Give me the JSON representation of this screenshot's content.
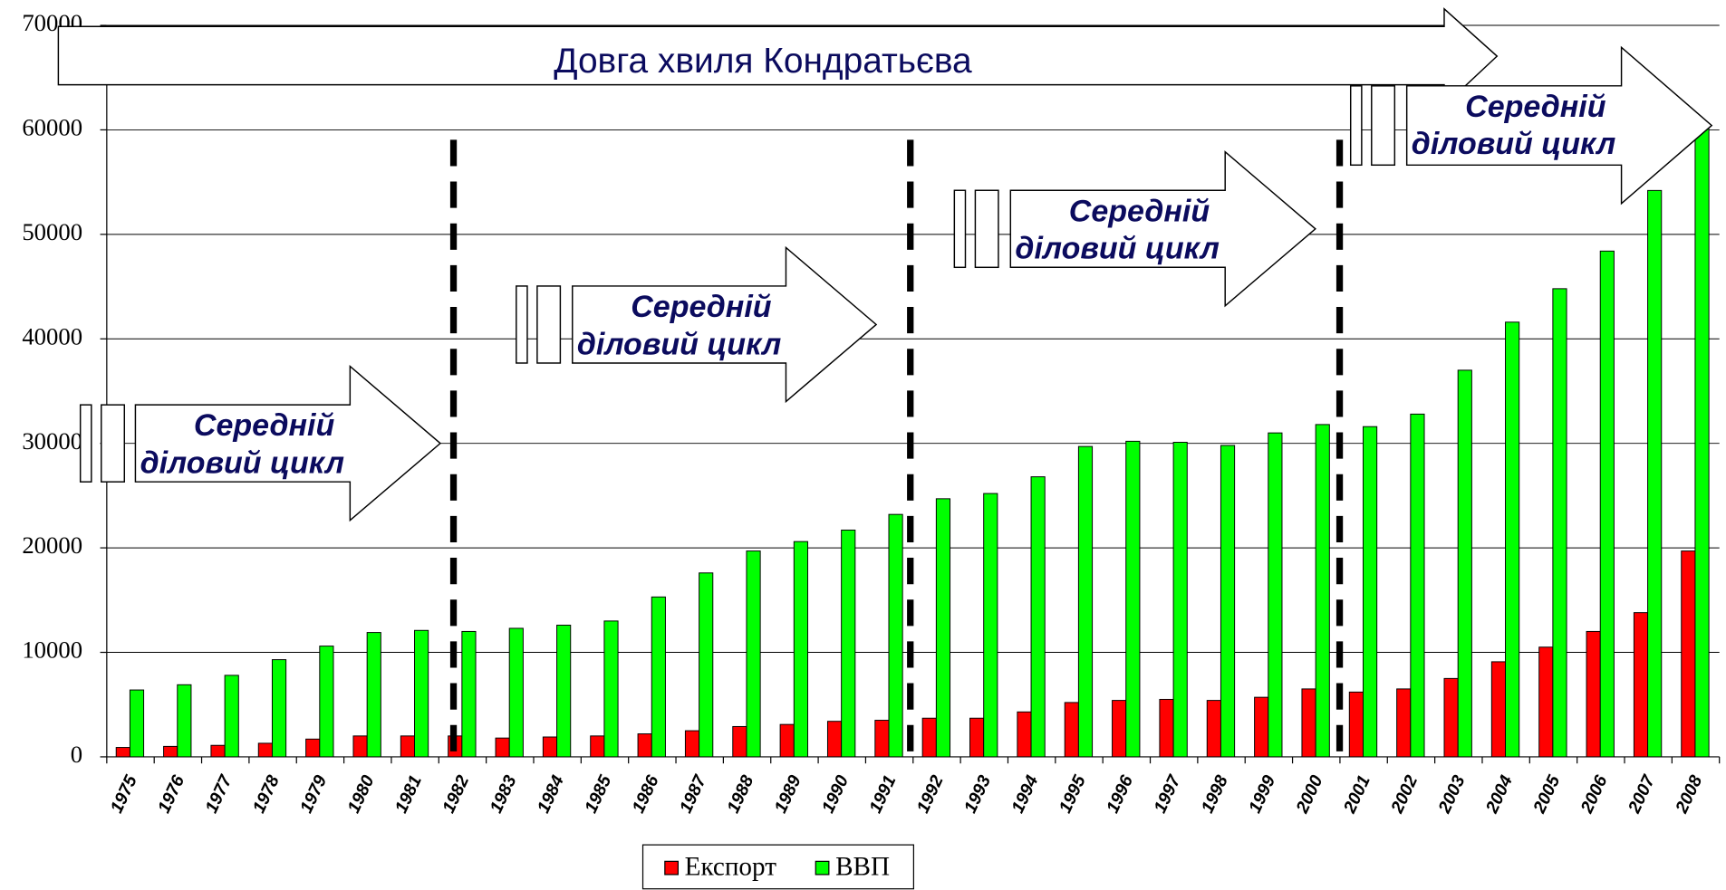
{
  "chart_data": {
    "type": "bar",
    "title": "Довга хвиля Кондратьєва",
    "annotations": [
      [
        "Середній",
        "діловий цикл"
      ],
      [
        "Середній",
        "діловий цикл"
      ],
      [
        "Середній",
        "діловий цикл"
      ],
      [
        "Середній",
        "діловий цикл"
      ]
    ],
    "categories": [
      "1975",
      "1976",
      "1977",
      "1978",
      "1979",
      "1980",
      "1981",
      "1982",
      "1983",
      "1984",
      "1985",
      "1986",
      "1987",
      "1988",
      "1989",
      "1990",
      "1991",
      "1992",
      "1993",
      "1994",
      "1995",
      "1996",
      "1997",
      "1998",
      "1999",
      "2000",
      "2001",
      "2002",
      "2003",
      "2004",
      "2005",
      "2006",
      "2007",
      "2008"
    ],
    "series": [
      {
        "name": "Експорт",
        "color": "#ff0000",
        "values": [
          900,
          1000,
          1100,
          1300,
          1700,
          2000,
          2000,
          2000,
          1800,
          1900,
          2000,
          2200,
          2500,
          2900,
          3100,
          3400,
          3500,
          3700,
          3700,
          4300,
          5200,
          5400,
          5500,
          5400,
          5700,
          6500,
          6200,
          6500,
          7500,
          9100,
          10500,
          12000,
          13800,
          19700
        ]
      },
      {
        "name": "ВВП",
        "color": "#00ff00",
        "values": [
          6400,
          6900,
          7800,
          9300,
          10600,
          11900,
          12100,
          12000,
          12300,
          12600,
          13000,
          15300,
          17600,
          19700,
          20600,
          21700,
          23200,
          24700,
          25200,
          26800,
          29700,
          30200,
          30100,
          29800,
          31000,
          31800,
          31600,
          32800,
          37000,
          41600,
          44800,
          48400,
          54200,
          60600
        ]
      }
    ],
    "ylim": [
      0,
      70000
    ],
    "yticks": [
      0,
      10000,
      20000,
      30000,
      40000,
      50000,
      60000,
      70000
    ],
    "grid": true,
    "legend": "bottom"
  }
}
